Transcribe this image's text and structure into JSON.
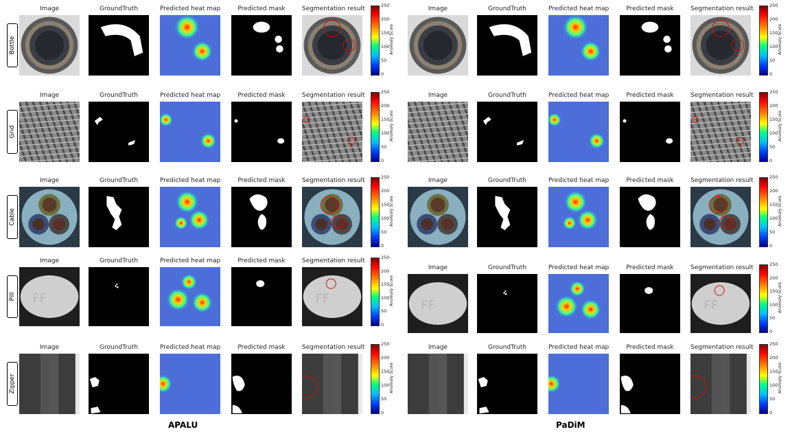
{
  "column_headers": [
    "Image",
    "GroundTruth",
    "Predicted heat map",
    "Predicted mask",
    "Segmentation result"
  ],
  "row_labels": [
    "Bottle",
    "Grid",
    "Cable",
    "Pill",
    "Zipper"
  ],
  "methods": [
    "APALU",
    "PaDiM"
  ],
  "colorbar": {
    "title": "Anomaly Score",
    "ticks": [
      "250",
      "200",
      "150",
      "100",
      "50",
      "0"
    ]
  },
  "colors": {
    "mask_bg": "#000000",
    "mask_fg": "#ffffff",
    "contour": "#d01010"
  }
}
